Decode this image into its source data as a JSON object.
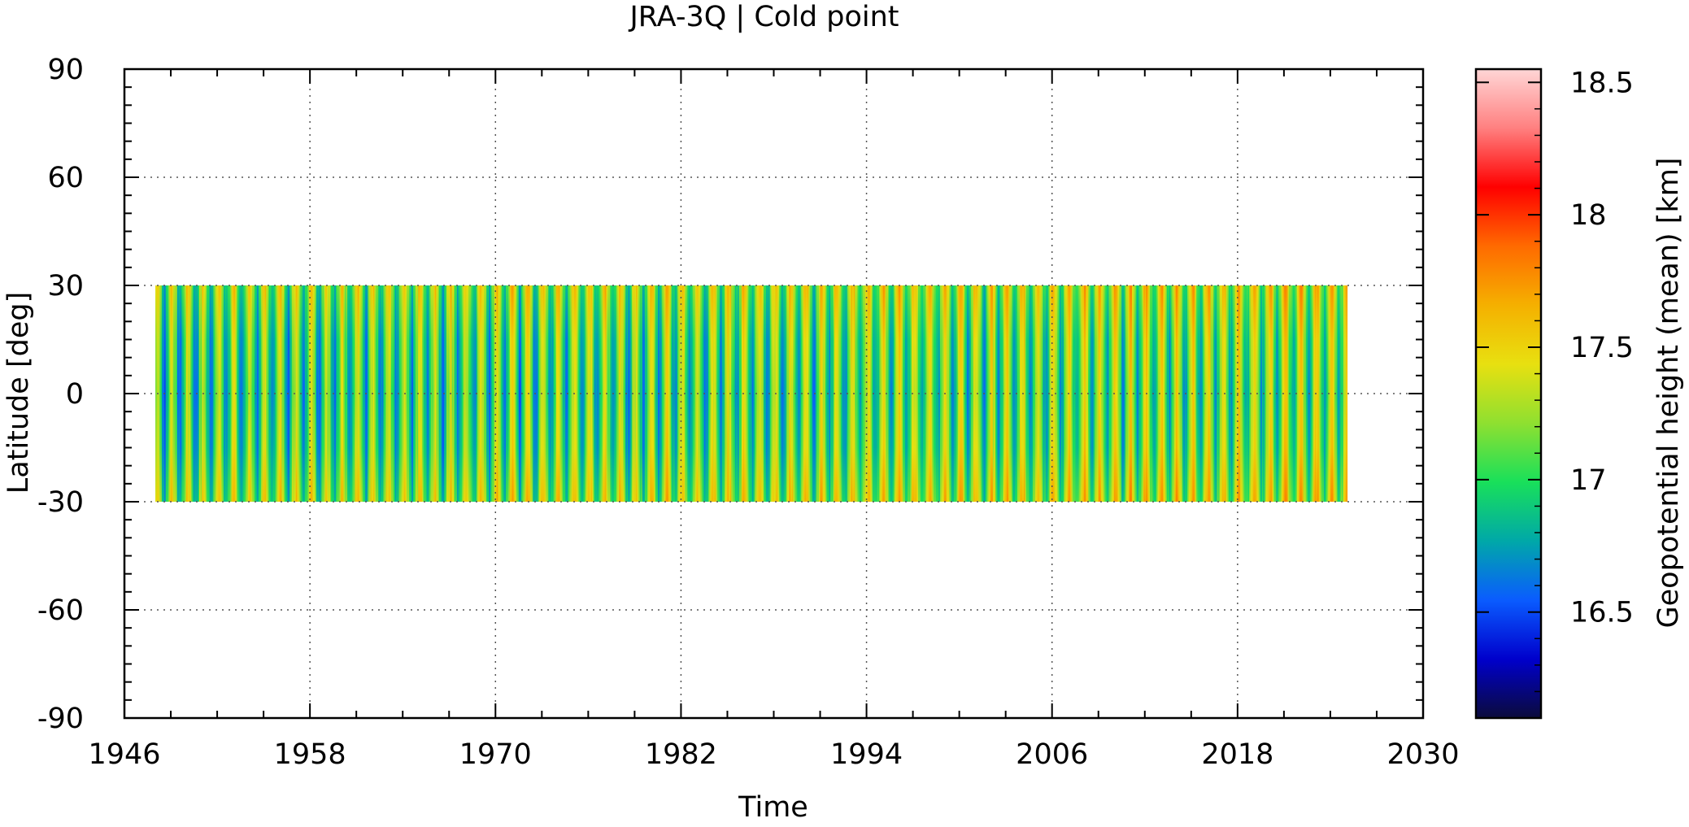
{
  "chart_data": {
    "type": "heatmap",
    "title": "JRA-3Q | Cold point",
    "xlabel": "Time",
    "ylabel": "Latitude [deg]",
    "colorbar_label": "Geopotential height (mean) [km]",
    "xlim": [
      1946,
      2030
    ],
    "ylim": [
      -90,
      90
    ],
    "x_ticks": [
      1946,
      1958,
      1970,
      1982,
      1994,
      2006,
      2018,
      2030
    ],
    "x_tick_labels": [
      "1946",
      "1958",
      "1970",
      "1982",
      "1994",
      "2006",
      "2018",
      "2030"
    ],
    "y_ticks": [
      -90,
      -60,
      -30,
      0,
      30,
      60,
      90
    ],
    "y_tick_labels": [
      "-90",
      "-60",
      "-30",
      "0",
      "30",
      "60",
      "90"
    ],
    "data_time_range": [
      1948,
      2025
    ],
    "data_lat_range": [
      -30,
      30
    ],
    "colorbar_range": [
      16.1,
      18.55
    ],
    "colorbar_ticks": [
      16.5,
      17,
      17.5,
      18,
      18.5
    ],
    "colorbar_tick_labels": [
      "16.5",
      "17",
      "17.5",
      "18",
      "18.5"
    ],
    "grid": true,
    "grid_style": "dotted",
    "colormap": [
      "#0b0b3b",
      "#0000cc",
      "#0a5cff",
      "#00a8a8",
      "#19e05a",
      "#8fe030",
      "#e8e010",
      "#f5b000",
      "#ff6a00",
      "#ff0000",
      "#ff8080",
      "#ffd6d6"
    ]
  }
}
